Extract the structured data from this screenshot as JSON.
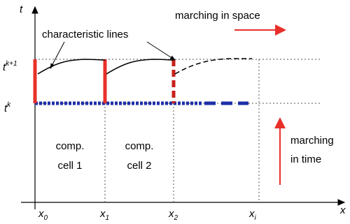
{
  "axes": {
    "vertical": "t",
    "horizontal": "x"
  },
  "levels": {
    "upper": {
      "base": "t",
      "sup": "k+1"
    },
    "lower": {
      "base": "t",
      "sup": "k"
    }
  },
  "nodes": [
    {
      "base": "x",
      "sub": "0"
    },
    {
      "base": "x",
      "sub": "1"
    },
    {
      "base": "x",
      "sub": "2"
    },
    {
      "base": "x",
      "sub": "i"
    }
  ],
  "annotations": {
    "characteristics": "characteristic lines",
    "space": "marching in space",
    "time": [
      "marching",
      "in time"
    ]
  },
  "cells": [
    [
      "comp.",
      "cell 1"
    ],
    [
      "comp.",
      "cell 2"
    ]
  ]
}
